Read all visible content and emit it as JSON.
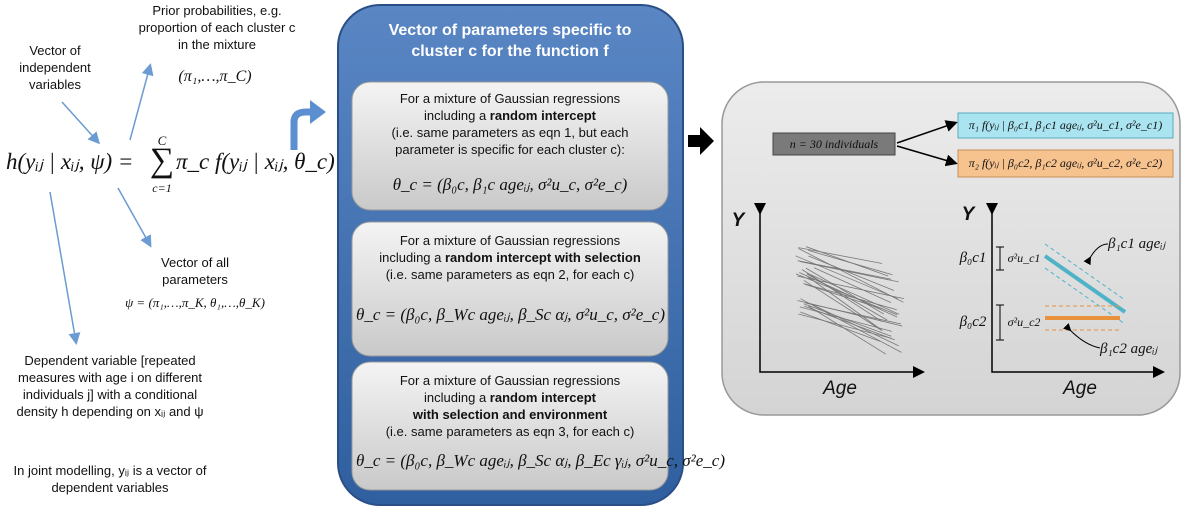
{
  "left": {
    "independent": "Vector of independent variables",
    "prior": "Prior probabilities, e.g. proportion of each cluster c in the mixture",
    "prior_formula": "(π₁,…,π_C)",
    "equation": {
      "lhs": "h(yᵢⱼ | xᵢⱼ, ψ) =",
      "sum_top": "C",
      "sum": "∑",
      "sum_bottom": "c=1",
      "rhs": "π_c f(yᵢⱼ | xᵢⱼ, θ_c)"
    },
    "all_params": "Vector of all parameters",
    "all_params_formula": "ψ = (π₁,…,π_K, θ₁,…,θ_K)",
    "dependent": "Dependent variable [repeated measures with age i on different individuals j] with a conditional density h depending on xᵢⱼ and ψ",
    "joint": "In joint modelling, yᵢⱼ is a vector of dependent variables"
  },
  "middle": {
    "title": "Vector of parameters specific to cluster c for the function f",
    "panels": [
      {
        "lines": [
          {
            "text": "For a mixture of Gaussian regressions"
          },
          {
            "text": "including a ",
            "strong": "random intercept"
          },
          {
            "text": "(i.e. same parameters as eqn 1, but each"
          },
          {
            "text": "parameter is specific for each cluster c):"
          }
        ],
        "formula": "θ_c = (β₀c, β₁c ageᵢⱼ, σ²u_c, σ²e_c)"
      },
      {
        "lines": [
          {
            "text": "For a mixture of Gaussian regressions"
          },
          {
            "text": "including a ",
            "strong": "random intercept with selection"
          },
          {
            "text": "(i.e. same parameters as eqn 2, for each c)"
          }
        ],
        "formula": "θ_c = (β₀c, β_Wc ageᵢⱼ, β_Sc αⱼ, σ²u_c, σ²e_c)"
      },
      {
        "lines": [
          {
            "text": "For a mixture of Gaussian regressions"
          },
          {
            "text": "including a ",
            "strong": "random intercept"
          },
          {
            "strong": "with selection and environment"
          },
          {
            "text": "(i.e. same parameters as eqn 3, for each c)"
          }
        ],
        "formula": "θ_c = (β₀c, β_Wc ageᵢⱼ, β_Sc αⱼ, β_Ec γᵢⱼ, σ²u_c, σ²e_c)"
      }
    ]
  },
  "right": {
    "sample": "n = 30 individuals",
    "clusters": [
      "π₁ f(yᵢⱼ | β₀c1, β₁c1 ageᵢⱼ, σ²u_c1, σ²e_c1)",
      "π₂ f(yᵢⱼ | β₀c2, β₁c2 ageᵢⱼ, σ²u_c2, σ²e_c2)"
    ],
    "plot_left": {
      "y_label": "Y",
      "x_label": "Age"
    },
    "plot_right": {
      "y_label": "Y",
      "x_label": "Age",
      "intercept_1": "β₀c1",
      "variance_1": "σ²u_c1",
      "slope_1": "β₁c1 ageᵢⱼ",
      "intercept_2": "β₀c2",
      "variance_2": "σ²u_c2",
      "slope_2": "β₁c2 ageᵢⱼ"
    }
  }
}
